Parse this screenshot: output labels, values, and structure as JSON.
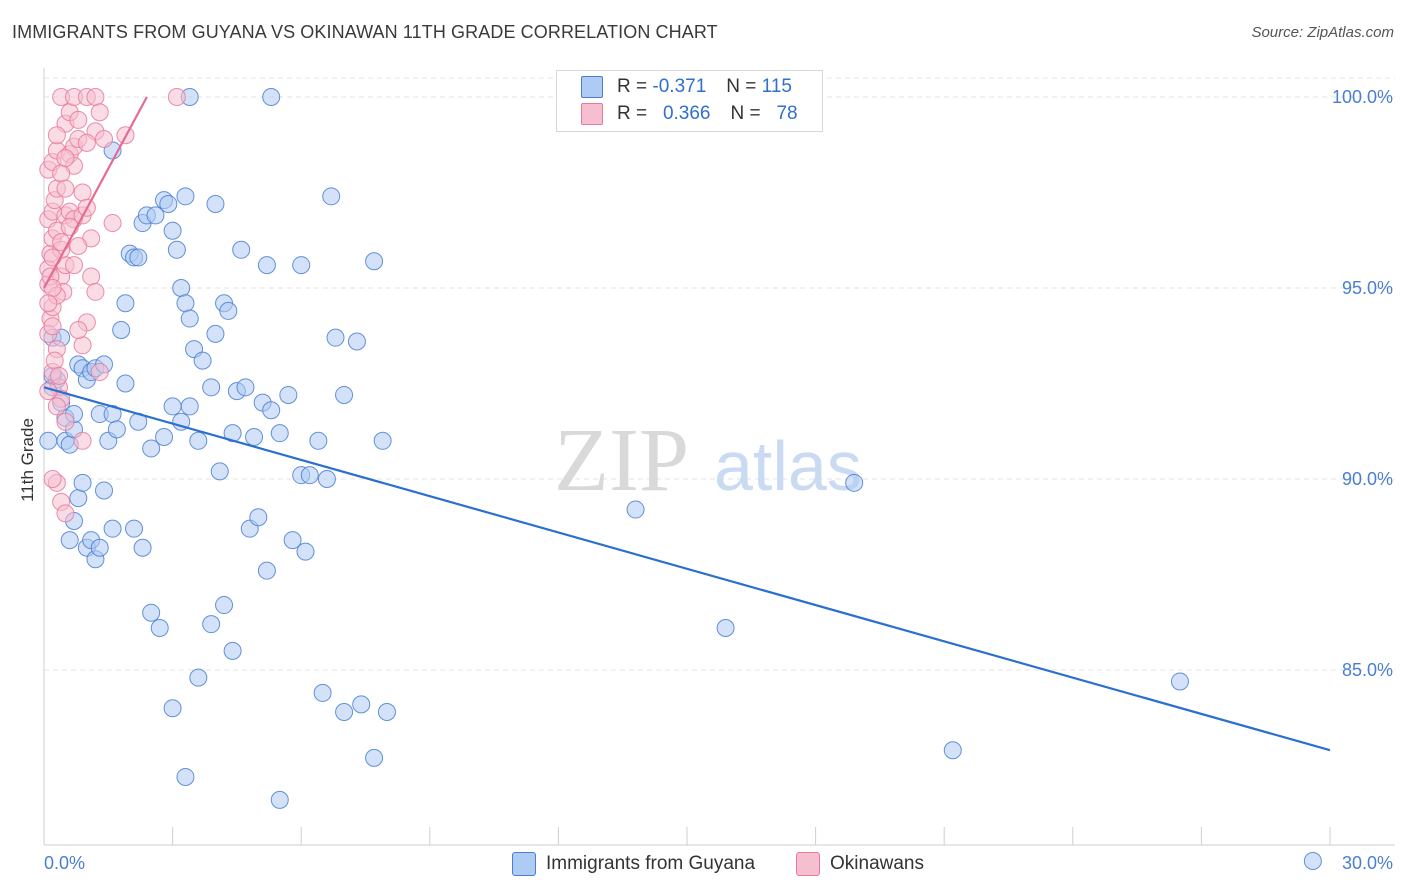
{
  "header": {
    "title": "IMMIGRANTS FROM GUYANA VS OKINAWAN 11TH GRADE CORRELATION CHART",
    "source": "Source: ZipAtlas.com"
  },
  "legend": {
    "series1": {
      "r_label": "R =",
      "r_value": "-0.371",
      "n_label": "N =",
      "n_value": "115"
    },
    "series2": {
      "r_label": "R =",
      "r_value": "0.366",
      "n_label": "N =",
      "n_value": "78"
    }
  },
  "watermark": {
    "zip": "ZIP",
    "atlas": "atlas"
  },
  "colors": {
    "blue": "#4a7fd0",
    "blue_fill": "#aecbf3",
    "blue_line": "#2b6fcf",
    "pink": "#e8799e",
    "pink_fill": "#f6bfd0",
    "pink_line": "#e56a94"
  },
  "chart_data": {
    "type": "scatter",
    "title": "IMMIGRANTS FROM GUYANA VS OKINAWAN 11TH GRADE CORRELATION CHART",
    "xlabel": "",
    "ylabel": "11th Grade",
    "xlim": [
      0,
      30
    ],
    "ylim": [
      80.0,
      100.5
    ],
    "x_tick_labels": [
      "0.0%",
      "30.0%"
    ],
    "y_ticks": [
      85,
      90,
      95,
      100
    ],
    "y_tick_labels": [
      "85.0%",
      "90.0%",
      "95.0%",
      "100.0%"
    ],
    "series": [
      {
        "name": "Immigrants from Guyana",
        "color": "#4a7fd0",
        "trend": {
          "x": [
            0,
            30
          ],
          "y": [
            92.4,
            82.9
          ]
        },
        "points": [
          [
            0.2,
            93.7
          ],
          [
            0.2,
            92.4
          ],
          [
            0.3,
            92.6
          ],
          [
            0.4,
            93.7
          ],
          [
            0.5,
            91.0
          ],
          [
            0.5,
            91.6
          ],
          [
            0.6,
            90.9
          ],
          [
            0.4,
            92.0
          ],
          [
            0.7,
            91.3
          ],
          [
            0.7,
            91.7
          ],
          [
            0.8,
            93.0
          ],
          [
            0.9,
            92.9
          ],
          [
            1.0,
            92.6
          ],
          [
            1.1,
            92.8
          ],
          [
            1.2,
            92.9
          ],
          [
            1.3,
            91.7
          ],
          [
            1.4,
            93.0
          ],
          [
            1.5,
            91.0
          ],
          [
            1.6,
            91.7
          ],
          [
            1.7,
            91.3
          ],
          [
            0.6,
            88.4
          ],
          [
            0.7,
            88.9
          ],
          [
            0.8,
            89.5
          ],
          [
            0.9,
            89.9
          ],
          [
            1.0,
            88.2
          ],
          [
            1.1,
            88.4
          ],
          [
            1.2,
            87.9
          ],
          [
            1.3,
            88.2
          ],
          [
            1.4,
            89.7
          ],
          [
            1.6,
            88.7
          ],
          [
            1.8,
            93.9
          ],
          [
            1.9,
            94.6
          ],
          [
            2.0,
            95.9
          ],
          [
            2.1,
            95.8
          ],
          [
            2.2,
            95.8
          ],
          [
            2.3,
            96.7
          ],
          [
            2.4,
            96.9
          ],
          [
            2.6,
            96.9
          ],
          [
            2.8,
            97.3
          ],
          [
            2.9,
            97.2
          ],
          [
            3.0,
            96.5
          ],
          [
            3.1,
            96.0
          ],
          [
            3.2,
            95.0
          ],
          [
            3.3,
            94.6
          ],
          [
            3.4,
            94.2
          ],
          [
            3.5,
            93.4
          ],
          [
            3.7,
            93.1
          ],
          [
            3.9,
            92.4
          ],
          [
            4.0,
            93.8
          ],
          [
            4.2,
            94.6
          ],
          [
            4.3,
            94.4
          ],
          [
            4.5,
            92.3
          ],
          [
            4.7,
            92.4
          ],
          [
            4.9,
            91.1
          ],
          [
            5.1,
            92.0
          ],
          [
            5.3,
            91.8
          ],
          [
            5.5,
            91.2
          ],
          [
            5.7,
            92.2
          ],
          [
            6.0,
            90.1
          ],
          [
            6.2,
            90.1
          ],
          [
            6.4,
            91.0
          ],
          [
            6.6,
            90.0
          ],
          [
            6.8,
            93.7
          ],
          [
            7.0,
            92.2
          ],
          [
            1.9,
            92.5
          ],
          [
            2.2,
            91.5
          ],
          [
            2.5,
            90.8
          ],
          [
            2.8,
            91.1
          ],
          [
            3.0,
            91.9
          ],
          [
            3.2,
            91.5
          ],
          [
            3.4,
            91.9
          ],
          [
            3.6,
            91.0
          ],
          [
            4.1,
            90.2
          ],
          [
            4.4,
            91.2
          ],
          [
            2.1,
            88.7
          ],
          [
            2.3,
            88.2
          ],
          [
            2.5,
            86.5
          ],
          [
            2.7,
            86.1
          ],
          [
            3.0,
            84.0
          ],
          [
            3.3,
            82.2
          ],
          [
            3.6,
            84.8
          ],
          [
            3.9,
            86.2
          ],
          [
            4.2,
            86.7
          ],
          [
            4.4,
            85.5
          ],
          [
            4.8,
            88.7
          ],
          [
            5.0,
            89.0
          ],
          [
            5.2,
            87.6
          ],
          [
            5.5,
            81.6
          ],
          [
            5.8,
            88.4
          ],
          [
            6.1,
            88.1
          ],
          [
            6.5,
            84.4
          ],
          [
            7.0,
            83.9
          ],
          [
            7.4,
            84.1
          ],
          [
            7.7,
            82.7
          ],
          [
            8.0,
            83.9
          ],
          [
            1.6,
            98.6
          ],
          [
            3.3,
            97.4
          ],
          [
            4.0,
            97.2
          ],
          [
            4.6,
            96.0
          ],
          [
            5.2,
            95.6
          ],
          [
            6.0,
            95.6
          ],
          [
            6.7,
            97.4
          ],
          [
            7.7,
            95.7
          ],
          [
            7.3,
            93.6
          ],
          [
            7.9,
            91.0
          ],
          [
            3.4,
            100.0
          ],
          [
            5.3,
            100.0
          ],
          [
            13.8,
            89.2
          ],
          [
            15.9,
            86.1
          ],
          [
            18.9,
            89.9
          ],
          [
            21.2,
            82.9
          ],
          [
            26.5,
            84.7
          ],
          [
            29.6,
            80.0
          ],
          [
            0.1,
            91.0
          ],
          [
            0.2,
            92.7
          ]
        ]
      },
      {
        "name": "Okinawans",
        "color": "#e8799e",
        "trend": {
          "x": [
            0,
            2.4
          ],
          "y": [
            95.0,
            100.0
          ]
        },
        "points": [
          [
            0.1,
            95.1
          ],
          [
            0.1,
            95.5
          ],
          [
            0.15,
            95.9
          ],
          [
            0.2,
            96.3
          ],
          [
            0.1,
            96.8
          ],
          [
            0.2,
            97.0
          ],
          [
            0.25,
            97.3
          ],
          [
            0.3,
            97.6
          ],
          [
            0.1,
            98.1
          ],
          [
            0.2,
            98.3
          ],
          [
            0.3,
            98.6
          ],
          [
            0.15,
            94.2
          ],
          [
            0.2,
            94.5
          ],
          [
            0.1,
            93.8
          ],
          [
            0.3,
            93.4
          ],
          [
            0.2,
            92.8
          ],
          [
            0.35,
            92.4
          ],
          [
            0.4,
            92.1
          ],
          [
            0.5,
            96.9
          ],
          [
            0.6,
            97.0
          ],
          [
            0.7,
            96.8
          ],
          [
            0.4,
            95.3
          ],
          [
            0.5,
            95.6
          ],
          [
            0.45,
            94.9
          ],
          [
            0.6,
            98.5
          ],
          [
            0.7,
            98.7
          ],
          [
            0.8,
            98.9
          ],
          [
            0.5,
            99.3
          ],
          [
            0.6,
            99.6
          ],
          [
            0.4,
            100.0
          ],
          [
            0.7,
            100.0
          ],
          [
            1.0,
            100.0
          ],
          [
            1.2,
            100.0
          ],
          [
            1.3,
            99.6
          ],
          [
            1.2,
            99.1
          ],
          [
            1.0,
            98.8
          ],
          [
            0.9,
            97.5
          ],
          [
            1.1,
            96.3
          ],
          [
            0.8,
            96.1
          ],
          [
            1.1,
            95.3
          ],
          [
            1.2,
            94.9
          ],
          [
            1.0,
            94.1
          ],
          [
            0.9,
            93.5
          ],
          [
            0.8,
            93.9
          ],
          [
            0.3,
            89.9
          ],
          [
            0.4,
            89.4
          ],
          [
            0.5,
            89.1
          ],
          [
            0.3,
            96.5
          ],
          [
            0.4,
            96.0
          ],
          [
            0.2,
            95.8
          ],
          [
            0.15,
            95.3
          ],
          [
            0.3,
            94.8
          ],
          [
            0.2,
            94.0
          ],
          [
            0.25,
            93.1
          ],
          [
            0.35,
            92.7
          ],
          [
            0.1,
            92.3
          ],
          [
            0.5,
            91.5
          ],
          [
            0.9,
            91.0
          ],
          [
            1.3,
            92.8
          ],
          [
            1.6,
            96.7
          ],
          [
            1.9,
            99.0
          ],
          [
            3.1,
            100.0
          ],
          [
            0.7,
            98.2
          ],
          [
            0.4,
            98.0
          ],
          [
            0.5,
            97.6
          ],
          [
            0.3,
            99.0
          ],
          [
            0.9,
            96.9
          ],
          [
            1.0,
            97.1
          ],
          [
            0.6,
            96.6
          ],
          [
            0.2,
            95.0
          ],
          [
            0.1,
            94.6
          ],
          [
            0.3,
            91.9
          ],
          [
            0.2,
            90.0
          ],
          [
            0.4,
            96.2
          ],
          [
            0.7,
            95.6
          ],
          [
            0.5,
            98.4
          ],
          [
            0.8,
            99.4
          ],
          [
            1.4,
            98.9
          ]
        ]
      }
    ]
  },
  "bottom_legend": {
    "item1": "Immigrants from Guyana",
    "item2": "Okinawans"
  }
}
